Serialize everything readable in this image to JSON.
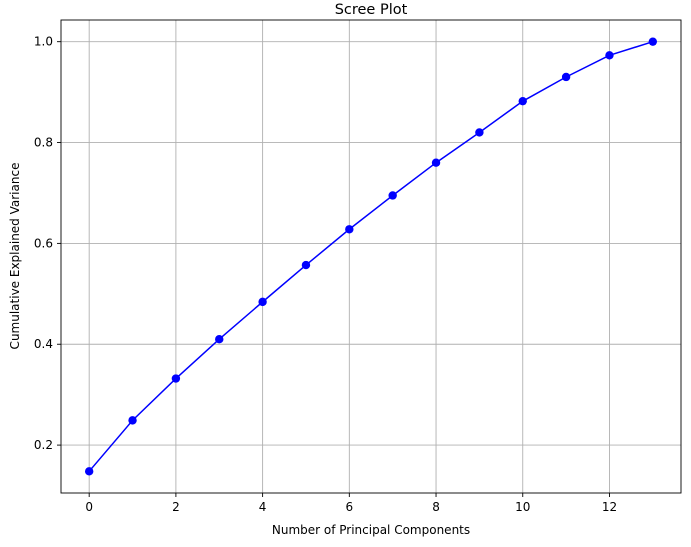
{
  "chart_data": {
    "type": "line",
    "title": "Scree Plot",
    "xlabel": "Number of Principal Components",
    "ylabel": "Cumulative Explained Variance",
    "x": [
      0,
      1,
      2,
      3,
      4,
      5,
      6,
      7,
      8,
      9,
      10,
      11,
      12,
      13
    ],
    "series": [
      {
        "values": [
          0.148,
          0.249,
          0.332,
          0.41,
          0.484,
          0.557,
          0.628,
          0.695,
          0.76,
          0.82,
          0.882,
          0.93,
          0.973,
          1.0
        ],
        "color": "#0000ff",
        "marker": "circle"
      }
    ],
    "xlim": [
      -0.65,
      13.65
    ],
    "ylim": [
      0.105,
      1.043
    ],
    "xticks": [
      "0",
      "2",
      "4",
      "6",
      "8",
      "10",
      "12"
    ],
    "yticks": [
      "0.2",
      "0.4",
      "0.6",
      "0.8",
      "1.0"
    ],
    "grid": true
  }
}
